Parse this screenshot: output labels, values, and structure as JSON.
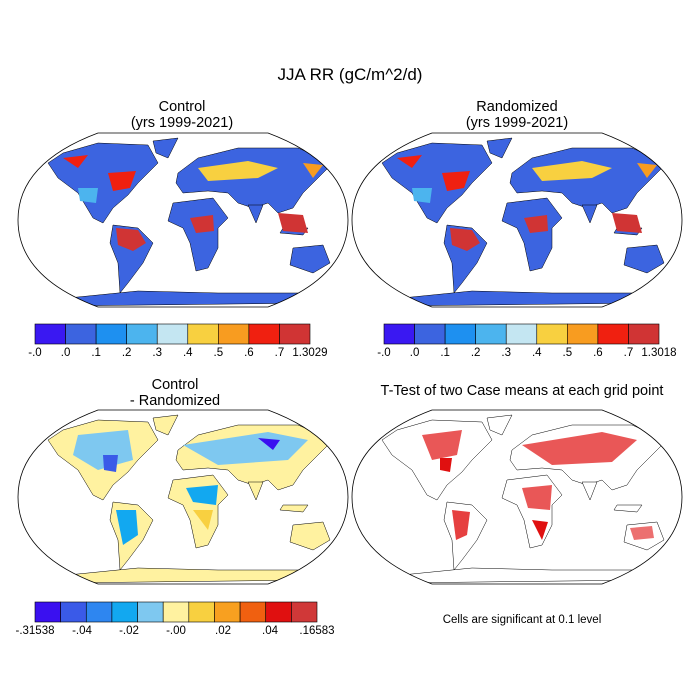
{
  "title": "JJA RR (gC/m^2/d)",
  "panels": [
    {
      "title": [
        "Control",
        "(yrs 1999-2021)"
      ],
      "colorbar": {
        "colors": [
          "#3a18f2",
          "#3c64e0",
          "#1e90f0",
          "#4cb4ee",
          "#c4e6f2",
          "#f8d040",
          "#f89c20",
          "#f02010",
          "#d03434"
        ],
        "labels": [
          "-.0",
          ".0",
          ".1",
          ".2",
          ".3",
          ".4",
          ".5",
          ".6",
          ".7",
          "1.3029"
        ]
      }
    },
    {
      "title": [
        "Randomized",
        "(yrs 1999-2021)"
      ],
      "colorbar": {
        "colors": [
          "#3a18f2",
          "#3c64e0",
          "#1e90f0",
          "#4cb4ee",
          "#c4e6f2",
          "#f8d040",
          "#f89c20",
          "#f02010",
          "#d03434"
        ],
        "labels": [
          "-.0",
          ".0",
          ".1",
          ".2",
          ".3",
          ".4",
          ".5",
          ".6",
          ".7",
          "1.3018"
        ]
      }
    },
    {
      "title": [
        "Control",
        "- Randomized"
      ],
      "colorbar": {
        "colors": [
          "#3a10f0",
          "#3a5ae8",
          "#2e86f0",
          "#12a8f0",
          "#7ec8f0",
          "#fff2a0",
          "#f8d040",
          "#f8a020",
          "#f06010",
          "#e01010",
          "#d03838"
        ],
        "labels": [
          "-.31538",
          "-.04",
          "-.02",
          "-.00",
          ".02",
          ".04",
          ".16583"
        ]
      }
    },
    {
      "title": [
        "T-Test of two Case means at each grid point"
      ]
    }
  ],
  "note": "Cells are significant at 0.1 level"
}
